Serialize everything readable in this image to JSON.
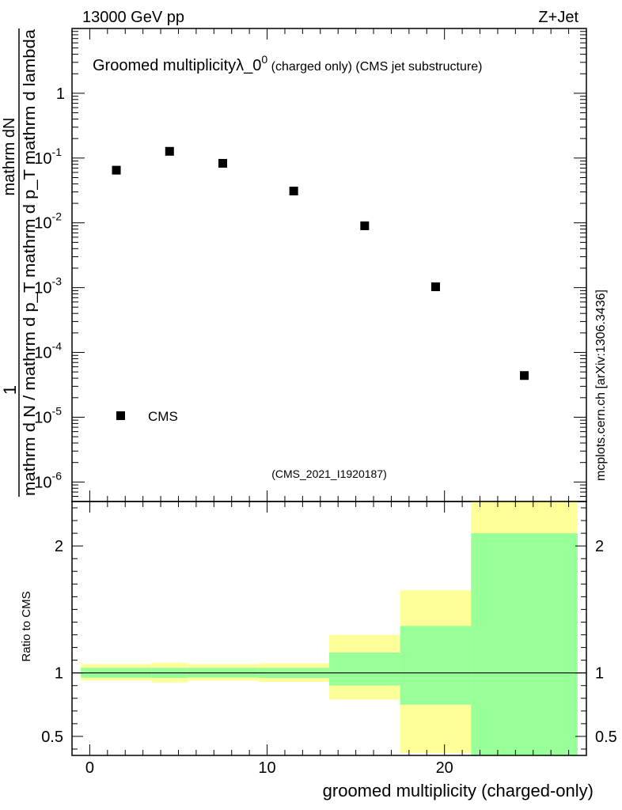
{
  "header": {
    "energy": "13000 GeV pp",
    "process": "Z+Jet"
  },
  "watermark": "mcplots.cern.ch [arXiv:1306.3436]",
  "chart_data": [
    {
      "type": "scatter",
      "title_main": "Groomed multiplicity",
      "title_symbol": "λ_0",
      "title_sup": "0",
      "title_detail": " (charged only) (CMS jet substructure)",
      "ylabel_top": "mathrm dN",
      "ylabel_bottom": "mathrm d N / mathrm d p_T mathrm d p_T mathrm d lambda",
      "ylabel_numerator": "1",
      "yscale": "log",
      "ylim": [
        5e-07,
        10
      ],
      "xlim": [
        -1,
        28
      ],
      "ytick_labels": [
        {
          "base": "1",
          "exp": "",
          "value": 1
        },
        {
          "base": "10",
          "exp": "-1",
          "value": 0.1
        },
        {
          "base": "10",
          "exp": "-2",
          "value": 0.01
        },
        {
          "base": "10",
          "exp": "-3",
          "value": 0.001
        },
        {
          "base": "10",
          "exp": "-4",
          "value": 0.0001
        },
        {
          "base": "10",
          "exp": "-5",
          "value": 1e-05
        },
        {
          "base": "10",
          "exp": "-6",
          "value": 1e-06
        }
      ],
      "series": [
        {
          "name": "CMS",
          "x": [
            1.5,
            4.5,
            7.5,
            11.5,
            15.5,
            19.5,
            24.5
          ],
          "y": [
            0.065,
            0.127,
            0.083,
            0.031,
            0.009,
            0.00103,
            4.4e-05
          ]
        }
      ],
      "analysis_label": "(CMS_2021_I1920187)",
      "legend_position": "bottom-left"
    },
    {
      "type": "area",
      "ylabel": "Ratio to CMS",
      "xlabel": "groomed multiplicity (charged-only)",
      "xlim": [
        -1,
        28
      ],
      "ylim": [
        0.35,
        2.35
      ],
      "reference_line": 1,
      "xtick_labels": [
        "0",
        "10",
        "20"
      ],
      "ytick_labels": [
        "0.5",
        "1",
        "2"
      ],
      "bins": [
        {
          "lo": -0.5,
          "hi": 3.5,
          "band_inner": [
            0.962,
            1.04
          ],
          "band_outer": [
            0.94,
            1.07
          ]
        },
        {
          "lo": 3.5,
          "hi": 5.5,
          "band_inner": [
            0.96,
            1.04
          ],
          "band_outer": [
            0.925,
            1.08
          ]
        },
        {
          "lo": 5.5,
          "hi": 9.5,
          "band_inner": [
            0.963,
            1.04
          ],
          "band_outer": [
            0.94,
            1.07
          ]
        },
        {
          "lo": 9.5,
          "hi": 13.5,
          "band_inner": [
            0.96,
            1.04
          ],
          "band_outer": [
            0.93,
            1.075
          ]
        },
        {
          "lo": 13.5,
          "hi": 17.5,
          "band_inner": [
            0.9,
            1.16
          ],
          "band_outer": [
            0.79,
            1.3
          ]
        },
        {
          "lo": 17.5,
          "hi": 21.5,
          "band_inner": [
            0.75,
            1.37
          ],
          "band_outer": [
            0.37,
            1.65
          ]
        },
        {
          "lo": 21.5,
          "hi": 27.5,
          "band_inner": [
            0.35,
            2.1
          ],
          "band_outer": [
            0.35,
            2.35
          ]
        }
      ]
    }
  ],
  "colors": {
    "outer_band": "#ffff99",
    "inner_band": "#99ff99",
    "marker": "#000000",
    "label_grey": "#999999"
  }
}
